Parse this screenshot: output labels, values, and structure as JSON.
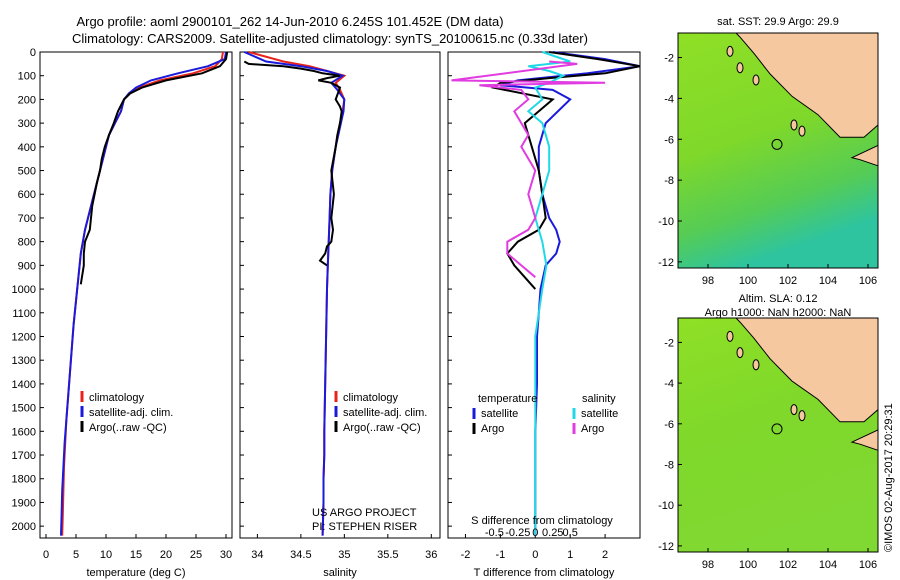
{
  "header": {
    "line1": "Argo profile: aoml 2900101_262 14-Jun-2010 6.245S 101.452E (DM data)",
    "line2": "Climatology: CARS2009. Satellite-adjusted climatology: synTS_20100615.nc (0.33d later)"
  },
  "credit": "©IMOS 02-Aug-2017 20:29:31",
  "colors": {
    "climatology": "#e8231b",
    "satellite": "#1a1adb",
    "argo": "#000000",
    "sal_satellite": "#21d8e6",
    "sal_argo": "#e03ce0",
    "land": "#f5c8a0",
    "ocean_warm": "#8fe026",
    "ocean_cool": "#2ec4a0"
  },
  "chart_data": [
    {
      "type": "line",
      "panel": "temperature",
      "xlabel": "temperature (deg C)",
      "xlim": [
        -1,
        31
      ],
      "xticks": [
        0,
        5,
        10,
        15,
        20,
        25,
        30
      ],
      "ylim": [
        2050,
        0
      ],
      "yticks": [
        0,
        100,
        200,
        300,
        400,
        500,
        600,
        700,
        800,
        900,
        1000,
        1100,
        1200,
        1300,
        1400,
        1500,
        1600,
        1700,
        1800,
        1900,
        2000
      ],
      "legend": {
        "placement": "bottom-center",
        "entries": [
          "climatology",
          "satellite-adj. clim.",
          "Argo(..raw -QC)"
        ]
      },
      "series": [
        {
          "name": "climatology",
          "color": "#e8231b",
          "x": [
            29.5,
            29.3,
            28.2,
            24.5,
            19,
            15.5,
            14,
            13,
            12.5,
            11.5,
            10.5,
            10,
            9.5,
            9,
            8.5,
            7.5,
            6.5,
            5.8,
            5.4,
            5,
            4.6,
            4.3,
            4,
            3.7,
            3.4,
            3.2,
            3,
            2.9,
            2.8,
            2.7
          ],
          "y": [
            0,
            30,
            60,
            90,
            120,
            150,
            175,
            200,
            250,
            300,
            350,
            400,
            450,
            500,
            550,
            650,
            750,
            850,
            950,
            1050,
            1150,
            1250,
            1350,
            1450,
            1550,
            1650,
            1750,
            1850,
            1950,
            2040
          ]
        },
        {
          "name": "satellite-adj. clim.",
          "color": "#1a1adb",
          "x": [
            30,
            29.8,
            27,
            22,
            17.5,
            15,
            13.8,
            13,
            12.5,
            11.5,
            10.5,
            10,
            9.5,
            9,
            8.5,
            7.5,
            6.5,
            5.8,
            5.4,
            5,
            4.6,
            4.3,
            4,
            3.7,
            3.4,
            3.1,
            2.9,
            2.7,
            2.6,
            2.5
          ],
          "y": [
            0,
            30,
            60,
            90,
            120,
            150,
            175,
            200,
            250,
            300,
            350,
            400,
            450,
            500,
            550,
            650,
            750,
            850,
            950,
            1050,
            1150,
            1250,
            1350,
            1450,
            1550,
            1650,
            1750,
            1850,
            1950,
            2040
          ]
        },
        {
          "name": "Argo(..raw -QC)",
          "color": "#000000",
          "x": [
            30.2,
            30,
            29,
            26,
            20,
            16,
            14,
            13,
            12,
            11.3,
            10.5,
            9.8,
            9.3,
            9,
            8.5,
            7.7,
            7.3,
            6.5,
            6.3,
            6.3,
            5.8
          ],
          "y": [
            0,
            30,
            60,
            90,
            120,
            150,
            175,
            200,
            250,
            300,
            350,
            400,
            450,
            500,
            550,
            650,
            750,
            800,
            850,
            900,
            980
          ]
        }
      ],
      "annotations": []
    },
    {
      "type": "line",
      "panel": "salinity",
      "xlabel": "salinity",
      "xlim": [
        33.8,
        36.1
      ],
      "xticks": [
        34,
        34.5,
        35,
        35.5,
        36
      ],
      "ylim": [
        2050,
        0
      ],
      "legend": {
        "placement": "bottom-center",
        "entries": [
          "climatology",
          "satellite-adj. clim.",
          "Argo(..raw -QC)"
        ]
      },
      "series": [
        {
          "name": "climatology",
          "color": "#e8231b",
          "x": [
            33.9,
            34.3,
            34.6,
            34.8,
            35.0,
            34.9,
            34.95,
            35.0,
            34.98,
            34.95,
            34.92,
            34.9,
            34.88,
            34.86,
            34.85,
            34.84,
            34.83,
            34.82,
            34.81,
            34.8,
            34.79,
            34.78,
            34.77,
            34.77,
            34.76,
            34.76,
            34.75
          ],
          "y": [
            0,
            40,
            60,
            80,
            100,
            130,
            160,
            200,
            250,
            300,
            350,
            400,
            450,
            500,
            550,
            600,
            700,
            800,
            900,
            1000,
            1200,
            1400,
            1600,
            1700,
            1800,
            1900,
            2040
          ]
        },
        {
          "name": "satellite-adj. clim.",
          "color": "#1a1adb",
          "x": [
            33.85,
            34.1,
            34.5,
            34.8,
            34.98,
            34.85,
            34.92,
            35.0,
            34.99,
            34.96,
            34.93,
            34.9,
            34.88,
            34.86,
            34.85,
            34.84,
            34.83,
            34.82,
            34.81,
            34.8,
            34.79,
            34.78,
            34.77,
            34.77,
            34.76,
            34.76,
            34.75
          ],
          "y": [
            0,
            40,
            60,
            80,
            100,
            130,
            160,
            200,
            250,
            300,
            350,
            400,
            450,
            500,
            550,
            600,
            700,
            800,
            900,
            1000,
            1200,
            1400,
            1600,
            1700,
            1800,
            1900,
            2040
          ]
        },
        {
          "name": "Argo(..raw -QC)",
          "color": "#000000",
          "x": [
            33.85,
            33.9,
            34.3,
            34.5,
            34.65,
            34.75,
            34.95,
            34.8,
            34.7,
            34.85,
            34.95,
            34.9,
            34.95,
            34.97,
            34.95,
            34.92,
            34.9,
            34.85,
            34.88,
            34.85,
            34.87,
            34.85,
            34.8,
            34.78,
            34.72,
            34.8
          ],
          "y": [
            40,
            50,
            60,
            70,
            80,
            90,
            100,
            110,
            120,
            130,
            150,
            200,
            230,
            250,
            300,
            350,
            400,
            500,
            600,
            700,
            750,
            800,
            820,
            850,
            880,
            900
          ]
        }
      ],
      "annotations": [
        "US ARGO PROJECT",
        "PI: STEPHEN RISER"
      ]
    },
    {
      "type": "line",
      "panel": "difference",
      "xlabel": "T difference from climatology",
      "xlabel2": "S difference from climatology",
      "xlim": [
        -2.5,
        3
      ],
      "xticks": [
        -2,
        -1,
        0,
        1,
        2
      ],
      "x2ticks": [
        "-0.5",
        "-0.25",
        "0",
        "0.25",
        "0.5"
      ],
      "ylim": [
        2050,
        0
      ],
      "legend": {
        "placement": "bottom-center",
        "temperature_title": "temperature",
        "salinity_title": "salinity",
        "temperature_entries": [
          "satellite",
          "Argo"
        ],
        "salinity_entries": [
          "satellite",
          "Argo"
        ]
      },
      "series": [
        {
          "name": "satellite",
          "group": "temperature",
          "color": "#1a1adb",
          "x": [
            0.5,
            2,
            3,
            1.5,
            -0.5,
            -1,
            0.5,
            1,
            0.3,
            0.1,
            0.1,
            0.2,
            0.4,
            0.6,
            0.7,
            0.6,
            0.3,
            0.15,
            0.1,
            0.05,
            0.05,
            0,
            0,
            0
          ],
          "y": [
            0,
            30,
            60,
            90,
            120,
            140,
            160,
            200,
            300,
            400,
            500,
            600,
            700,
            750,
            800,
            850,
            900,
            1000,
            1100,
            1200,
            1400,
            1600,
            1800,
            2040
          ]
        },
        {
          "name": "Argo",
          "group": "temperature",
          "color": "#000000",
          "x": [
            0.4,
            1.8,
            3,
            2,
            0.4,
            -1,
            -1.2,
            0.5,
            0.1,
            -0.3,
            -0.1,
            0.1,
            0.2,
            0.3,
            0.1,
            -0.5,
            -0.8,
            -0.6,
            0
          ],
          "y": [
            0,
            30,
            60,
            90,
            110,
            130,
            150,
            200,
            250,
            300,
            400,
            500,
            600,
            700,
            750,
            800,
            850,
            900,
            1000
          ]
        },
        {
          "name": "satellite",
          "group": "salinity",
          "color": "#21d8e6",
          "x": [
            0.05,
            0.25,
            -0.05,
            0.1,
            0.2,
            0.1,
            0,
            0.05,
            -0.05,
            0.05,
            0.1,
            0.1,
            0.05,
            0,
            0.05,
            0.08,
            0.05,
            0,
            0,
            0,
            0
          ],
          "y": [
            0,
            40,
            60,
            80,
            100,
            130,
            150,
            200,
            250,
            300,
            400,
            500,
            600,
            700,
            800,
            900,
            1000,
            1200,
            1500,
            1800,
            2040
          ]
        },
        {
          "name": "Argo",
          "group": "salinity",
          "color": "#e03ce0",
          "x": [
            0.1,
            0.3,
            -0.6,
            0.5,
            -0.4,
            -0.1,
            -0.05,
            -0.15,
            -0.1,
            -0.05,
            -0.1,
            0,
            -0.05,
            0,
            -0.05,
            -0.2,
            -0.2,
            -0.1,
            0
          ],
          "y": [
            40,
            50,
            120,
            130,
            140,
            160,
            200,
            250,
            300,
            350,
            400,
            500,
            600,
            700,
            750,
            800,
            850,
            900,
            950
          ]
        }
      ]
    },
    {
      "type": "heatmap",
      "panel": "sst-map",
      "title": "sat. SST: 29.9 Argo: 29.9",
      "xlim": [
        96.5,
        106.5
      ],
      "ylim": [
        -12.3,
        -0.8
      ],
      "xticks": [
        98,
        100,
        102,
        104,
        106
      ],
      "yticks": [
        -2,
        -4,
        -6,
        -8,
        -10,
        -12
      ],
      "marker": {
        "lon": 101.45,
        "lat": -6.25
      }
    },
    {
      "type": "heatmap",
      "panel": "sla-map",
      "title": "Altim. SLA: 0.12",
      "subtitle": "Argo h1000: NaN h2000: NaN",
      "xlim": [
        96.5,
        106.5
      ],
      "ylim": [
        -12.3,
        -0.8
      ],
      "xticks": [
        98,
        100,
        102,
        104,
        106
      ],
      "yticks": [
        -2,
        -4,
        -6,
        -8,
        -10,
        -12
      ],
      "marker": {
        "lon": 101.45,
        "lat": -6.25
      }
    }
  ]
}
